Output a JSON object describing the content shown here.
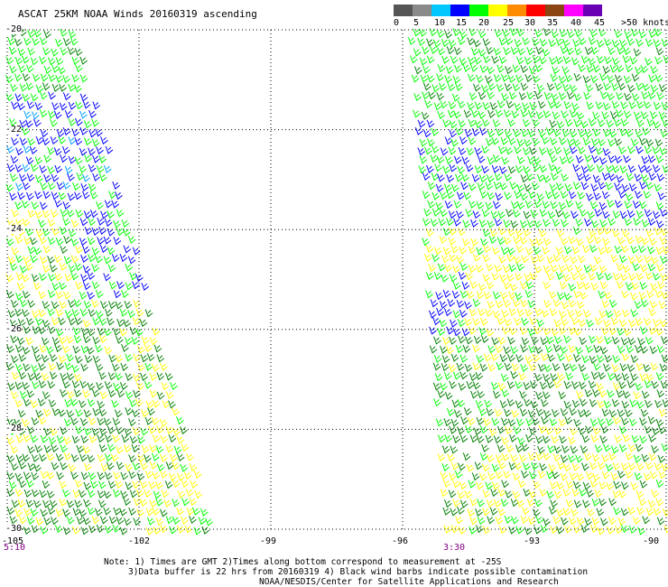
{
  "header": {
    "title": "ASCAT 25KM NOAA Winds 20160319 ascending"
  },
  "legend": {
    "labels": [
      "0",
      "5",
      "10",
      "15",
      "20",
      "25",
      "30",
      "35",
      "40",
      "45",
      ">50 knots"
    ],
    "colors": [
      "#555555",
      "#8a8a8a",
      "#00c8ff",
      "#0000ff",
      "#00ff00",
      "#ffff00",
      "#ff8c00",
      "#ff0000",
      "#8b4513",
      "#ff00ff",
      "#6a00b4"
    ]
  },
  "axes": {
    "lat_labels": [
      "-20",
      "-22",
      "-24",
      "-26",
      "-28",
      "-30"
    ],
    "lon_labels": [
      "-105",
      "-102",
      "-99",
      "-96",
      "-93",
      "-90"
    ]
  },
  "times": [
    "5:10",
    "3:30"
  ],
  "notes": [
    "Note: 1) Times are GMT 2)Times along bottom correspond to measurement at -25S",
    "3)Data buffer is 22 hrs from 20160319 4) Black wind barbs indicate possible contamination",
    "NOAA/NESDIS/Center for Satellite Applications and Research"
  ],
  "map_data": {
    "lat_range": [
      -30,
      -20
    ],
    "lon_range": [
      -105,
      -90
    ],
    "grid": true,
    "swaths": [
      {
        "name": "west",
        "time": "5:10",
        "lon_west": -105,
        "lon_east_top": -103.5,
        "lon_east_bottom": -100.4
      },
      {
        "name": "east",
        "time": "3:30",
        "lon_west_top": -95.9,
        "lon_west_bottom": -95.1,
        "lon_east": -90
      }
    ],
    "wind_colors": {
      "10-15": "#0000ff",
      "15-20": "#00ff00",
      "20-25": "#ffff00",
      "dark_green": "#008000"
    }
  }
}
